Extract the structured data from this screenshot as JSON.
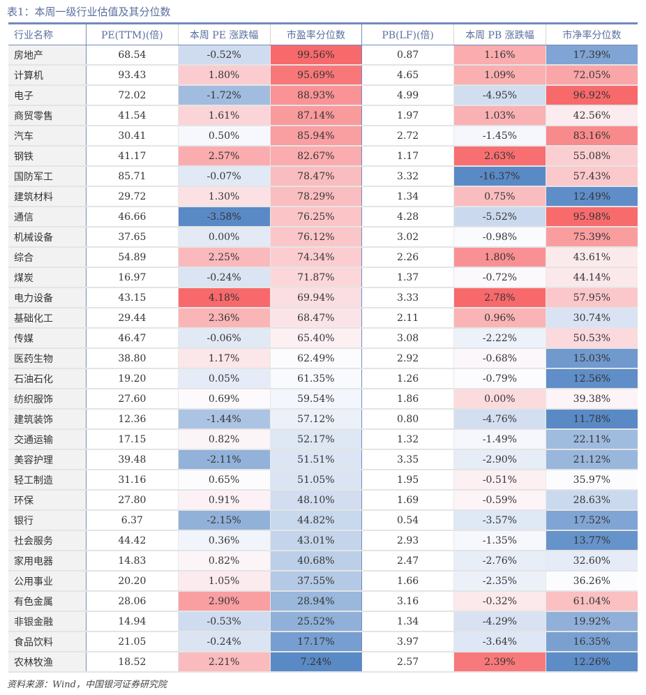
{
  "title": "表1：本周一级行业估值及其分位数",
  "headers": [
    "行业名称",
    "PE(TTM)(倍)",
    "本周 PE 涨跌幅",
    "市盈率分位数",
    "PB(LF)(倍)",
    "本周 PB 涨跌幅",
    "市净率分位数"
  ],
  "color_scale": {
    "low": "#5A8AC6",
    "mid": "#FCFCFF",
    "high": "#F8696B"
  },
  "rows": [
    [
      "房地产",
      "68.54",
      "-0.52%",
      "99.56%",
      "0.87",
      "1.16%",
      "17.39%"
    ],
    [
      "计算机",
      "93.43",
      "1.80%",
      "95.69%",
      "4.65",
      "1.09%",
      "72.05%"
    ],
    [
      "电子",
      "72.02",
      "-1.72%",
      "88.93%",
      "4.99",
      "-4.95%",
      "96.92%"
    ],
    [
      "商贸零售",
      "41.54",
      "1.61%",
      "87.14%",
      "1.97",
      "1.03%",
      "42.56%"
    ],
    [
      "汽车",
      "30.41",
      "0.50%",
      "85.94%",
      "2.72",
      "-1.45%",
      "83.16%"
    ],
    [
      "钢铁",
      "41.17",
      "2.57%",
      "82.67%",
      "1.17",
      "2.63%",
      "55.08%"
    ],
    [
      "国防军工",
      "85.71",
      "-0.07%",
      "78.47%",
      "3.32",
      "-16.37%",
      "57.43%"
    ],
    [
      "建筑材料",
      "29.72",
      "1.30%",
      "78.29%",
      "1.34",
      "0.75%",
      "12.49%"
    ],
    [
      "通信",
      "46.66",
      "-3.58%",
      "76.25%",
      "4.28",
      "-5.52%",
      "95.98%"
    ],
    [
      "机械设备",
      "37.65",
      "0.00%",
      "76.12%",
      "3.02",
      "-0.98%",
      "75.39%"
    ],
    [
      "综合",
      "54.89",
      "2.25%",
      "74.34%",
      "2.26",
      "1.80%",
      "43.61%"
    ],
    [
      "煤炭",
      "16.97",
      "-0.24%",
      "71.87%",
      "1.37",
      "-0.72%",
      "44.14%"
    ],
    [
      "电力设备",
      "43.15",
      "4.18%",
      "69.94%",
      "3.33",
      "2.78%",
      "57.95%"
    ],
    [
      "基础化工",
      "29.44",
      "2.36%",
      "68.47%",
      "2.11",
      "0.96%",
      "30.74%"
    ],
    [
      "传媒",
      "46.47",
      "-0.06%",
      "65.40%",
      "3.08",
      "-2.22%",
      "50.53%"
    ],
    [
      "医药生物",
      "38.80",
      "1.17%",
      "62.49%",
      "2.92",
      "-0.68%",
      "15.03%"
    ],
    [
      "石油石化",
      "19.20",
      "0.05%",
      "61.35%",
      "1.26",
      "-0.79%",
      "12.56%"
    ],
    [
      "纺织服饰",
      "27.60",
      "0.69%",
      "59.54%",
      "1.86",
      "0.00%",
      "39.38%"
    ],
    [
      "建筑装饰",
      "12.36",
      "-1.44%",
      "57.12%",
      "0.80",
      "-4.76%",
      "11.78%"
    ],
    [
      "交通运输",
      "17.15",
      "0.82%",
      "52.17%",
      "1.32",
      "-1.49%",
      "22.11%"
    ],
    [
      "美容护理",
      "39.48",
      "-2.11%",
      "51.51%",
      "3.35",
      "-2.90%",
      "21.12%"
    ],
    [
      "轻工制造",
      "31.16",
      "0.65%",
      "51.05%",
      "1.95",
      "-0.51%",
      "35.97%"
    ],
    [
      "环保",
      "27.80",
      "0.91%",
      "48.10%",
      "1.69",
      "-0.59%",
      "28.63%"
    ],
    [
      "银行",
      "6.37",
      "-2.15%",
      "44.82%",
      "0.54",
      "-3.57%",
      "17.52%"
    ],
    [
      "社会服务",
      "44.42",
      "0.36%",
      "43.01%",
      "2.93",
      "-1.35%",
      "13.77%"
    ],
    [
      "家用电器",
      "14.83",
      "0.82%",
      "40.68%",
      "2.47",
      "-2.76%",
      "32.60%"
    ],
    [
      "公用事业",
      "20.20",
      "1.05%",
      "37.55%",
      "1.66",
      "-2.35%",
      "36.26%"
    ],
    [
      "有色金属",
      "28.06",
      "2.90%",
      "28.94%",
      "3.16",
      "-0.32%",
      "61.04%"
    ],
    [
      "非银金融",
      "14.94",
      "-0.53%",
      "25.52%",
      "1.34",
      "-4.29%",
      "19.92%"
    ],
    [
      "食品饮料",
      "21.05",
      "-0.24%",
      "17.17%",
      "3.97",
      "-3.64%",
      "16.35%"
    ],
    [
      "农林牧渔",
      "18.52",
      "2.21%",
      "7.24%",
      "2.57",
      "2.39%",
      "12.26%"
    ]
  ],
  "source": "资料来源：Wind，中国银河证券研究院"
}
